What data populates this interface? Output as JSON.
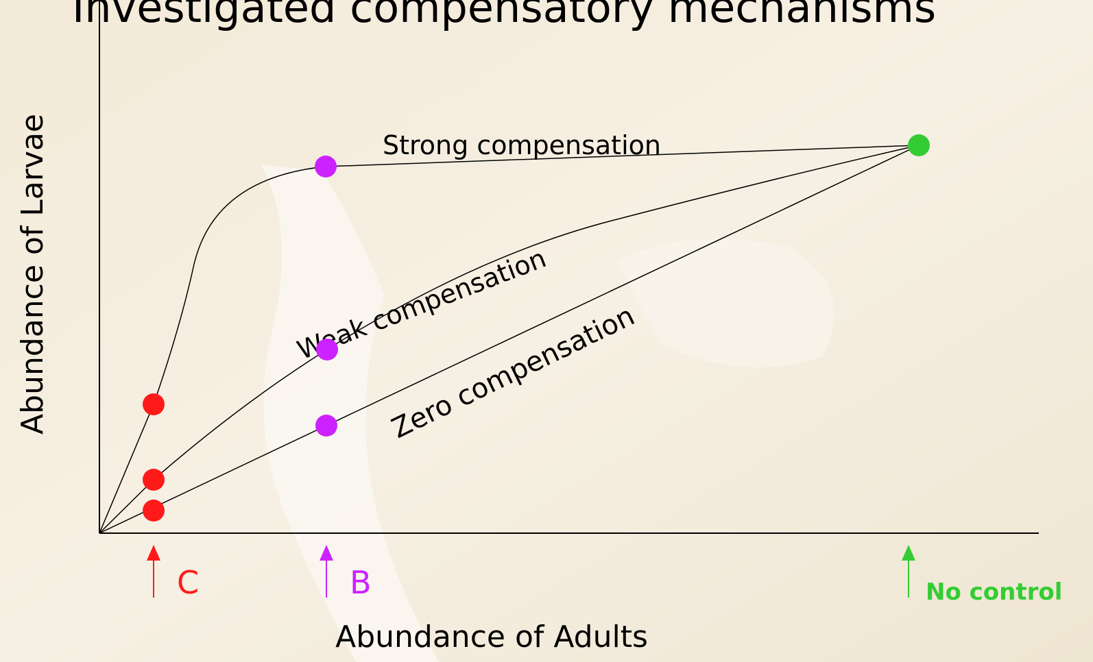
{
  "title": "Investigated compensatory mechanisms",
  "axes": {
    "y_label": "Abundance of Larvae",
    "x_label": "Abundance of Adults"
  },
  "curves": [
    {
      "label": "Strong compensation"
    },
    {
      "label": "Weak compensation"
    },
    {
      "label": "Zero compensation"
    }
  ],
  "markers": [
    {
      "label": "C"
    },
    {
      "label": "B"
    },
    {
      "label": "No control"
    }
  ]
}
